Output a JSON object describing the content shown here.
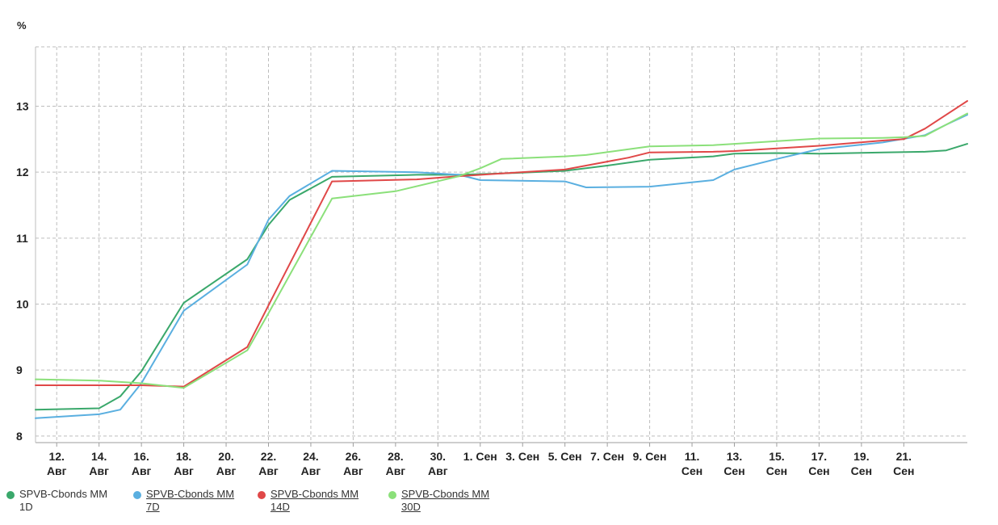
{
  "unit_label": "%",
  "colors": {
    "grid": "#bdbdbd",
    "axis": "#9e9e9e"
  },
  "chart_data": {
    "type": "line",
    "ylim": [
      7.9,
      13.9
    ],
    "yticks": [
      8,
      9,
      10,
      11,
      12,
      13
    ],
    "grid": true,
    "legend_position": "bottom-left",
    "x_labels": [
      {
        "line1": "12.",
        "line2": "Авг"
      },
      {
        "line1": "14.",
        "line2": "Авг"
      },
      {
        "line1": "16.",
        "line2": "Авг"
      },
      {
        "line1": "18.",
        "line2": "Авг"
      },
      {
        "line1": "20.",
        "line2": "Авг"
      },
      {
        "line1": "22.",
        "line2": "Авг"
      },
      {
        "line1": "24.",
        "line2": "Авг"
      },
      {
        "line1": "26.",
        "line2": "Авг"
      },
      {
        "line1": "28.",
        "line2": "Авг"
      },
      {
        "line1": "30.",
        "line2": "Авг"
      },
      {
        "line1": "1. Сен",
        "line2": ""
      },
      {
        "line1": "3. Сен",
        "line2": ""
      },
      {
        "line1": "5. Сен",
        "line2": ""
      },
      {
        "line1": "7. Сен",
        "line2": ""
      },
      {
        "line1": "9. Сен",
        "line2": ""
      },
      {
        "line1": "11.",
        "line2": "Сен"
      },
      {
        "line1": "13.",
        "line2": "Сен"
      },
      {
        "line1": "15.",
        "line2": "Сен"
      },
      {
        "line1": "17.",
        "line2": "Сен"
      },
      {
        "line1": "19.",
        "line2": "Сен"
      },
      {
        "line1": "21.",
        "line2": "Сен"
      }
    ],
    "series": [
      {
        "name": "SPVB-Cbonds MM 1D",
        "color": "#3aa86b",
        "points": [
          [
            11,
            8.4
          ],
          [
            14,
            8.42
          ],
          [
            15,
            8.6
          ],
          [
            16,
            8.98
          ],
          [
            18,
            10.02
          ],
          [
            21,
            10.68
          ],
          [
            22,
            11.2
          ],
          [
            23,
            11.58
          ],
          [
            25,
            11.93
          ],
          [
            29,
            11.96
          ],
          [
            31,
            11.96
          ],
          [
            33,
            11.98
          ],
          [
            36,
            12.02
          ],
          [
            38,
            12.1
          ],
          [
            40,
            12.19
          ],
          [
            43,
            12.24
          ],
          [
            44,
            12.28
          ],
          [
            46,
            12.29
          ],
          [
            48,
            12.28
          ],
          [
            51,
            12.3
          ],
          [
            53,
            12.31
          ],
          [
            54,
            12.33
          ],
          [
            55,
            12.43
          ]
        ]
      },
      {
        "name": "SPVB-Cbonds MM 7D",
        "color": "#5aafe0",
        "points": [
          [
            11,
            8.27
          ],
          [
            14,
            8.33
          ],
          [
            15,
            8.4
          ],
          [
            16,
            8.8
          ],
          [
            18,
            9.9
          ],
          [
            21,
            10.6
          ],
          [
            22,
            11.28
          ],
          [
            23,
            11.64
          ],
          [
            25,
            12.02
          ],
          [
            29,
            12.0
          ],
          [
            31,
            11.96
          ],
          [
            32,
            11.88
          ],
          [
            36,
            11.86
          ],
          [
            37,
            11.77
          ],
          [
            40,
            11.78
          ],
          [
            43,
            11.88
          ],
          [
            44,
            12.04
          ],
          [
            46,
            12.2
          ],
          [
            48,
            12.35
          ],
          [
            51,
            12.45
          ],
          [
            53,
            12.56
          ],
          [
            54,
            12.72
          ],
          [
            55,
            12.87
          ]
        ]
      },
      {
        "name": "SPVB-Cbonds MM 14D",
        "color": "#e04848",
        "points": [
          [
            11,
            8.77
          ],
          [
            14,
            8.77
          ],
          [
            16,
            8.77
          ],
          [
            18,
            8.75
          ],
          [
            21,
            9.35
          ],
          [
            22,
            9.98
          ],
          [
            25,
            11.86
          ],
          [
            29,
            11.89
          ],
          [
            31,
            11.94
          ],
          [
            33,
            11.98
          ],
          [
            36,
            12.04
          ],
          [
            37,
            12.1
          ],
          [
            39,
            12.22
          ],
          [
            40,
            12.3
          ],
          [
            43,
            12.31
          ],
          [
            44,
            12.32
          ],
          [
            46,
            12.36
          ],
          [
            48,
            12.4
          ],
          [
            51,
            12.48
          ],
          [
            52,
            12.5
          ],
          [
            53,
            12.66
          ],
          [
            55,
            13.08
          ]
        ]
      },
      {
        "name": "SPVB-Cbonds MM 30D",
        "color": "#8be07a",
        "points": [
          [
            11,
            8.86
          ],
          [
            14,
            8.84
          ],
          [
            16,
            8.8
          ],
          [
            18,
            8.73
          ],
          [
            21,
            9.3
          ],
          [
            22,
            9.86
          ],
          [
            25,
            11.6
          ],
          [
            28,
            11.71
          ],
          [
            31,
            11.94
          ],
          [
            32,
            12.06
          ],
          [
            33,
            12.2
          ],
          [
            36,
            12.24
          ],
          [
            37,
            12.26
          ],
          [
            40,
            12.39
          ],
          [
            43,
            12.41
          ],
          [
            44,
            12.43
          ],
          [
            46,
            12.47
          ],
          [
            48,
            12.51
          ],
          [
            51,
            12.52
          ],
          [
            52,
            12.53
          ],
          [
            53,
            12.55
          ],
          [
            55,
            12.89
          ]
        ]
      }
    ]
  },
  "legend": [
    {
      "line1": "SPVB-Cbonds MM",
      "line2": "1D",
      "link": false
    },
    {
      "line1": "SPVB-Cbonds MM",
      "line2": "7D",
      "link": true
    },
    {
      "line1": "SPVB-Cbonds MM",
      "line2": "14D",
      "link": true
    },
    {
      "line1": "SPVB-Cbonds MM",
      "line2": "30D",
      "link": true
    }
  ]
}
